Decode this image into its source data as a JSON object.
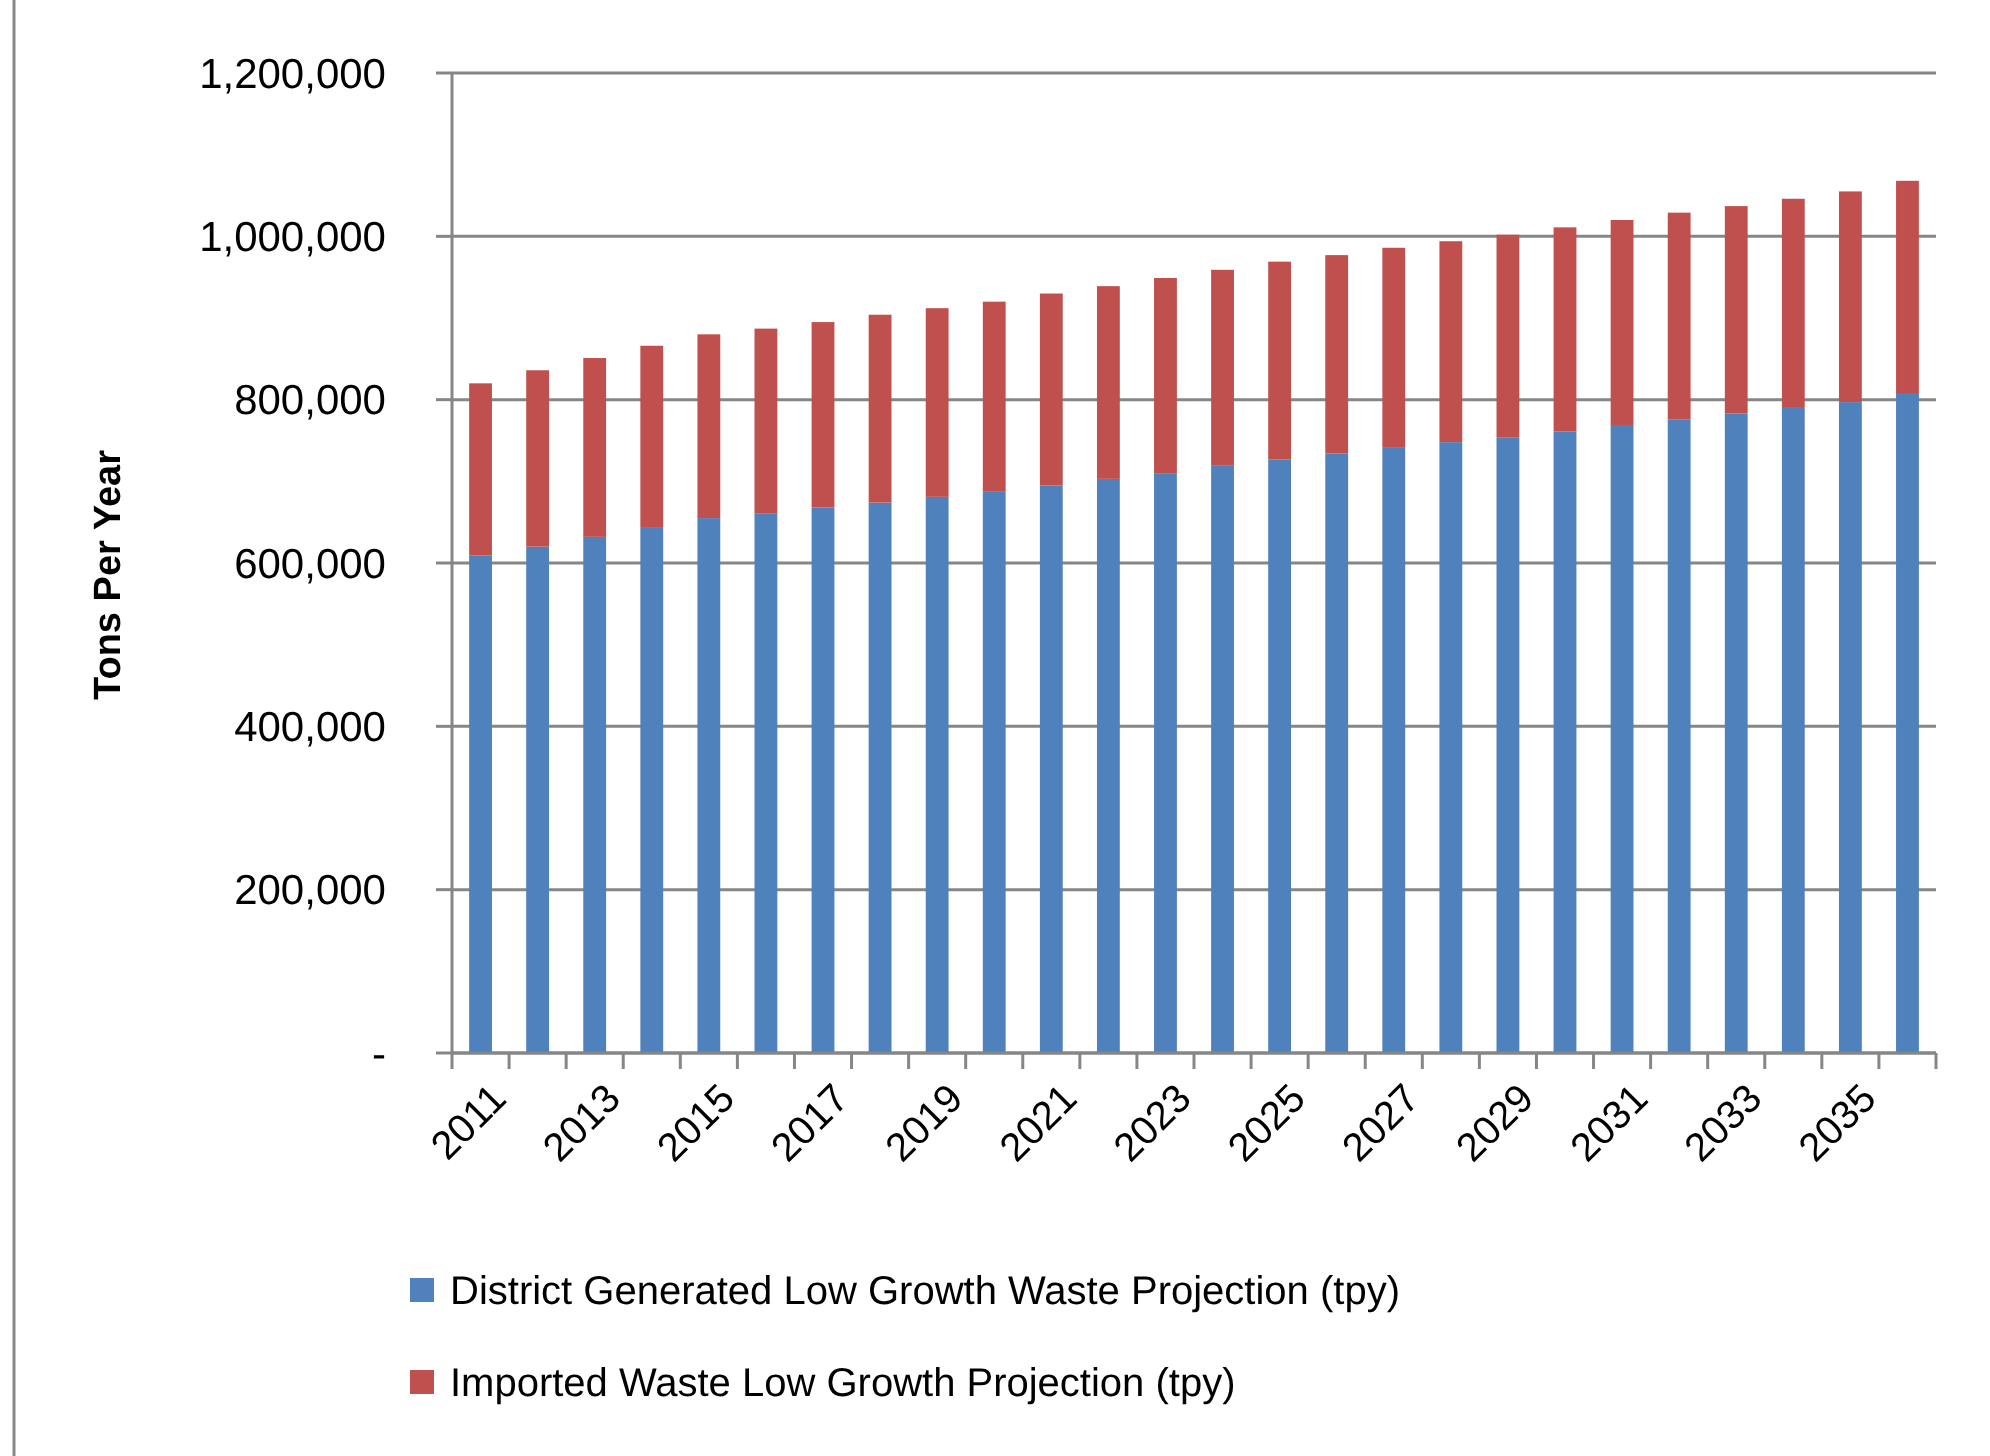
{
  "chart_data": {
    "type": "bar",
    "stacked": true,
    "ylabel": "Tons Per Year",
    "categories": [
      "2011",
      null,
      "2013",
      null,
      "2015",
      null,
      "2017",
      null,
      "2019",
      null,
      "2021",
      null,
      "2023",
      null,
      "2025",
      null,
      "2027",
      null,
      "2029",
      null,
      "2031",
      null,
      "2033",
      null,
      "2035",
      null
    ],
    "series": [
      {
        "name": "District Generated Low Growth Waste Projection (tpy)",
        "color": "#4f81bd",
        "values": [
          609000,
          620000,
          632000,
          644000,
          655000,
          661000,
          668000,
          674000,
          681000,
          688000,
          695000,
          703000,
          710000,
          719000,
          727000,
          734000,
          741000,
          748000,
          754000,
          761000,
          769000,
          776000,
          783000,
          791000,
          797000,
          807000
        ]
      },
      {
        "name": "Imported Waste Low Growth Projection (tpy)",
        "color": "#c0504d",
        "values": [
          211000,
          216000,
          219000,
          222000,
          225000,
          226000,
          227000,
          230000,
          231000,
          232000,
          235000,
          236000,
          239000,
          240000,
          242000,
          243000,
          245000,
          246000,
          248000,
          250000,
          251000,
          253000,
          254000,
          255000,
          258000,
          261000
        ]
      }
    ],
    "ylim": [
      0,
      1200000
    ],
    "yticks": [
      {
        "value": 0,
        "label": "-"
      },
      {
        "value": 200000,
        "label": "200,000"
      },
      {
        "value": 400000,
        "label": "400,000"
      },
      {
        "value": 600000,
        "label": "600,000"
      },
      {
        "value": 800000,
        "label": "800,000"
      },
      {
        "value": 1000000,
        "label": "1,000,000"
      },
      {
        "value": 1200000,
        "label": "1,200,000"
      }
    ],
    "grid": "y",
    "legend": "bottom"
  }
}
